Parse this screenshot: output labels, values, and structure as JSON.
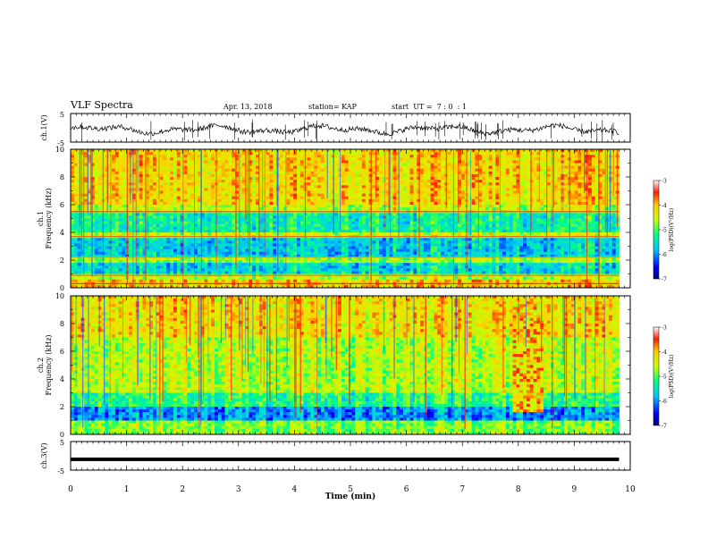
{
  "header": {
    "title": "VLF Spectra",
    "date": "Apr. 13, 2018",
    "station": "station= KAP",
    "start": "start  UT =  7 : 0  : 1"
  },
  "chart_data": [
    {
      "type": "line",
      "panel": "ch1-waveform",
      "ylabel": "ch.1(V)",
      "ylim": [
        -5,
        5
      ],
      "yticks": [
        "5",
        "-5"
      ],
      "xlim": [
        0,
        10
      ],
      "description_values": "noisy waveform approximately within -2.5 to +1.5 V"
    },
    {
      "type": "heatmap",
      "panel": "ch1-spectrogram",
      "ylabel": [
        "ch.1",
        "Frequency (kHz)"
      ],
      "ylim": [
        0,
        10
      ],
      "yticks": [
        "0",
        "2",
        "4",
        "6",
        "8",
        "10"
      ],
      "xlim": [
        0,
        10
      ],
      "colorbar": {
        "label": "log(PSD)(V²/Hz)",
        "ticks": [
          "-3",
          "-4",
          "-5",
          "-6",
          "-7"
        ],
        "range": [
          -7,
          -3
        ]
      }
    },
    {
      "type": "heatmap",
      "panel": "ch2-spectrogram",
      "ylabel": [
        "ch.2",
        "Frequency (kHz)"
      ],
      "ylim": [
        0,
        10
      ],
      "yticks": [
        "0",
        "2",
        "4",
        "6",
        "8",
        "10"
      ],
      "xlim": [
        0,
        10
      ],
      "colorbar": {
        "label": "log(PSD)(V²/Hz)",
        "ticks": [
          "-3",
          "-4",
          "-5",
          "-6",
          "-7"
        ],
        "range": [
          -7,
          -3
        ]
      }
    },
    {
      "type": "line",
      "panel": "ch3-waveform",
      "ylabel": "ch.3(V)",
      "ylim": [
        -5,
        5
      ],
      "yticks": [
        "5",
        "-5"
      ],
      "xlim": [
        0,
        10
      ],
      "values_const": -1.2
    }
  ],
  "xaxis": {
    "label": "Time (min)",
    "ticks": [
      "0",
      "1",
      "2",
      "3",
      "4",
      "5",
      "6",
      "7",
      "8",
      "9",
      "10"
    ],
    "data_end": 9.8
  }
}
